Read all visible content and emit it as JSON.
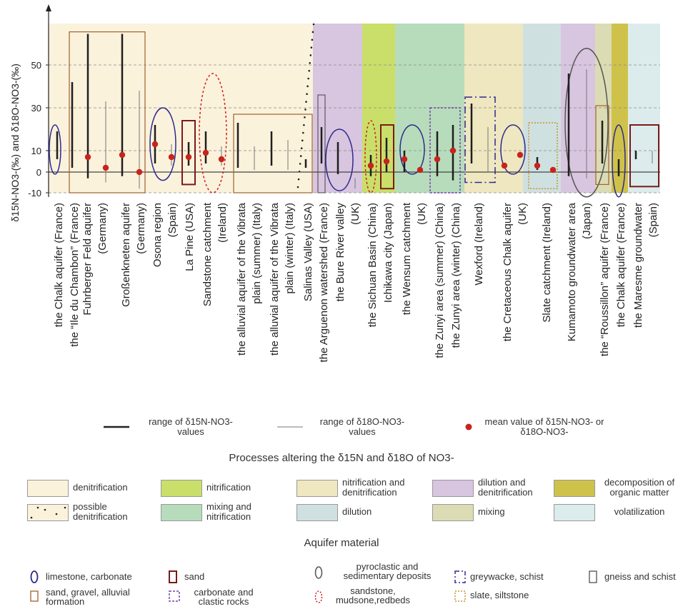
{
  "chart_data": {
    "type": "range",
    "y_axis_label": "δ15N-NO3-(‰) and δ18O-NO3-(‰)",
    "y_ticks": [
      -10,
      0,
      10,
      30,
      50
    ],
    "sites": [
      {
        "name": "the Chalk aquifer (France)",
        "bg": "denitrification",
        "n15": [
          6,
          19
        ],
        "o18": null,
        "mean": null,
        "material": "limestone"
      },
      {
        "name": "the \"Ile du Chambon\" (France)",
        "bg": "denitrification",
        "n15": [
          2,
          42
        ],
        "o18": null,
        "mean": null,
        "material": "sand_gravel"
      },
      {
        "name": "Fuhrberger Feld aquifer (Germany)",
        "bg": "denitrification",
        "n15": [
          -3,
          65
        ],
        "o18": [
          -5,
          33
        ],
        "mean": [
          7,
          2
        ],
        "material": "sand_gravel"
      },
      {
        "name": "Großenkneten aquifer (Germany)",
        "bg": "denitrification",
        "n15": [
          -2,
          65
        ],
        "o18": [
          -8,
          38
        ],
        "mean": [
          8,
          0
        ],
        "material": "sand_gravel"
      },
      {
        "name": "Osona region (Spain)",
        "bg": "denitrification",
        "n15": [
          4,
          22
        ],
        "o18": [
          3,
          13
        ],
        "mean": [
          13,
          7
        ],
        "material": "limestone"
      },
      {
        "name": "La Pine (USA)",
        "bg": "denitrification",
        "n15": [
          3,
          14
        ],
        "o18": null,
        "mean": [
          7
        ],
        "material": "sand"
      },
      {
        "name": "Sandstone catchment (Ireland)",
        "bg": "denitrification",
        "n15": [
          4,
          19
        ],
        "o18": [
          3,
          12
        ],
        "mean": [
          9,
          6
        ],
        "material": "sandstone"
      },
      {
        "name": "the alluvial aquifer of the Vibrata plain (summer) (Italy)",
        "bg": "denitrification",
        "n15": [
          2,
          23
        ],
        "o18": [
          1,
          12
        ],
        "mean": null,
        "material": "sand_gravel"
      },
      {
        "name": "the alluvial aquifer of the Vibrata plain (winter) (Italy)",
        "bg": "denitrification",
        "n15": [
          3,
          19
        ],
        "o18": [
          1,
          15
        ],
        "mean": null,
        "material": "sand_gravel"
      },
      {
        "name": "Salinas Valley (USA)",
        "bg": "denitrification",
        "n15": [
          2,
          6
        ],
        "o18": null,
        "mean": null,
        "material": null
      },
      {
        "name": "the Arguenon watershed (France)",
        "bg": "dilution_denitrification",
        "n15": [
          4,
          21
        ],
        "o18": null,
        "mean": null,
        "material": "gneiss"
      },
      {
        "name": "the Bure River valley (UK)",
        "bg": "dilution_denitrification",
        "n15": [
          -1,
          14
        ],
        "o18": [
          -8,
          -3
        ],
        "mean": null,
        "material": "limestone"
      },
      {
        "name": "the Sichuan Basin (China)",
        "bg": "nitrification",
        "n15": [
          -2,
          8
        ],
        "o18": null,
        "mean": [
          3
        ],
        "material": "sandstone"
      },
      {
        "name": "Ichikawa city (Japan)",
        "bg": "nitrification",
        "n15": [
          0,
          16
        ],
        "o18": null,
        "mean": [
          5
        ],
        "material": "sand"
      },
      {
        "name": "the Wensum catchment (UK)",
        "bg": "mixing_nitrification",
        "n15": [
          0,
          10
        ],
        "o18": null,
        "mean": [
          6,
          1
        ],
        "material": "limestone"
      },
      {
        "name": "the Zunyi area (summer) (China)",
        "bg": "mixing_nitrification",
        "n15": [
          -2,
          19
        ],
        "o18": null,
        "mean": [
          6
        ],
        "material": "carbonate_clastic"
      },
      {
        "name": "the Zunyi area (winter) (China)",
        "bg": "mixing_nitrification",
        "n15": [
          -4,
          22
        ],
        "o18": null,
        "mean": [
          10
        ],
        "material": "carbonate_clastic"
      },
      {
        "name": "Wexford (Ireland)",
        "bg": "nitrification_denitrification",
        "n15": [
          4,
          32
        ],
        "o18": [
          0,
          21
        ],
        "mean": null,
        "material": "greywacke"
      },
      {
        "name": "the Cretaceous Chalk aquifer (UK)",
        "bg": "nitrification_denitrification",
        "n15": null,
        "o18": null,
        "mean": [
          3,
          8
        ],
        "material": "limestone"
      },
      {
        "name": "Slate catchment (Ireland)",
        "bg": "dilution",
        "n15": [
          1,
          7
        ],
        "o18": null,
        "mean": [
          3,
          1
        ],
        "material": "slate"
      },
      {
        "name": "Kumamoto groundwater area (Japan)",
        "bg": "dilution_denitrification",
        "n15": [
          -2,
          46
        ],
        "o18": [
          -3,
          48
        ],
        "mean": null,
        "material": "pyroclastic"
      },
      {
        "name": "the \"Roussillon\" aquifer (France)",
        "bg": "mixing",
        "n15": [
          4,
          24
        ],
        "o18": null,
        "mean": null,
        "material": "sand_gravel"
      },
      {
        "name": "the Chalk aquifer (France)",
        "bg": "decomposition",
        "n15": [
          -2,
          6
        ],
        "o18": null,
        "mean": null,
        "material": "limestone"
      },
      {
        "name": "the Maresme groundwater (Spain)",
        "bg": "volatilization",
        "n15": [
          6,
          10
        ],
        "o18": [
          4,
          10
        ],
        "mean": null,
        "material": "sand"
      }
    ]
  },
  "legend": {
    "n15_range_label": "range of δ15N-NO3- values",
    "o18_range_label": "range of δ18O-NO3- values",
    "mean_label": "mean value of δ15N-NO3- or δ18O-NO3-",
    "processes_title": "Processes altering the δ15N and δ18O of NO3-",
    "processes": [
      {
        "key": "denitrification",
        "label": "denitrification",
        "color": "#fbf2dc"
      },
      {
        "key": "nitrification",
        "label": "nitrification",
        "color": "#c9df6a"
      },
      {
        "key": "nitrification_denitrification",
        "label": "nitrification and denitrification",
        "color": "#efe7bf"
      },
      {
        "key": "dilution_denitrification",
        "label": "dilution and denitrification",
        "color": "#d8c5df"
      },
      {
        "key": "decomposition",
        "label": "decomposition of organic matter",
        "color": "#cfc24a"
      },
      {
        "key": "possible_denitrification",
        "label": "possible denitrification",
        "color": "#fbf2dc"
      },
      {
        "key": "mixing_nitrification",
        "label": "mixing and nitrification",
        "color": "#b7dcbb"
      },
      {
        "key": "dilution",
        "label": "dilution",
        "color": "#cfe0e1"
      },
      {
        "key": "mixing",
        "label": "mixing",
        "color": "#dcdcb4"
      },
      {
        "key": "volatilization",
        "label": "volatilization",
        "color": "#dcecec"
      }
    ],
    "material_title": "Aquifer material",
    "materials": [
      {
        "key": "limestone",
        "label": "limestone, carbonate",
        "color": "#2e2a8f"
      },
      {
        "key": "sand",
        "label": "sand",
        "color": "#7a1b1b"
      },
      {
        "key": "pyroclastic",
        "label": "pyroclastic and sedimentary deposits",
        "color": "#555555"
      },
      {
        "key": "greywacke",
        "label": "greywacke, schist",
        "color": "#2e2a8f"
      },
      {
        "key": "gneiss",
        "label": "gneiss and schist",
        "color": "#444444"
      },
      {
        "key": "sand_gravel",
        "label": "sand, gravel, alluvial formation",
        "color": "#a0622a"
      },
      {
        "key": "carbonate_clastic",
        "label": "carbonate and clastic rocks",
        "color": "#7b3fb0"
      },
      {
        "key": "sandstone",
        "label": "sandstone, mudsone,redbeds",
        "color": "#d01f1f"
      },
      {
        "key": "slate",
        "label": "slate, siltstone",
        "color": "#c9942e"
      }
    ]
  }
}
